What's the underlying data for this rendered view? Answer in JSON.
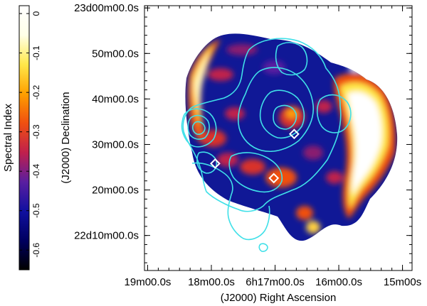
{
  "chart_data": {
    "type": "heatmap",
    "title": "",
    "xlabel": "(J2000) Right Ascension",
    "ylabel": "(J2000) Declination",
    "colorbar": {
      "label": "Spectral Index",
      "range": [
        -0.65,
        0.02
      ],
      "ticks": [
        "0",
        "-0.1",
        "-0.2",
        "-0.3",
        "-0.4",
        "-0.5",
        "-0.6"
      ],
      "tick_values": [
        0,
        -0.1,
        -0.2,
        -0.3,
        -0.4,
        -0.5,
        -0.6
      ],
      "colormap": [
        "#000000",
        "#000060",
        "#1010a0",
        "#5a1ea0",
        "#c0204c",
        "#f05010",
        "#ffa000",
        "#ffe84a",
        "#ffffe8",
        "#ffffff"
      ]
    },
    "x_ticks": [
      {
        "label": "19m00.0s",
        "ra_min": 19.0
      },
      {
        "label": "18m00.0s",
        "ra_min": 18.0
      },
      {
        "label": "6h17m00.0s",
        "ra_min": 17.0
      },
      {
        "label": "16m00.0s",
        "ra_min": 16.0
      },
      {
        "label": "15m00s",
        "ra_min": 15.0
      }
    ],
    "y_ticks": [
      {
        "label": "23d00m00.0s",
        "dec_arcmin": 60
      },
      {
        "label": "50m00.0s",
        "dec_arcmin": 50
      },
      {
        "label": "40m00.0s",
        "dec_arcmin": 40
      },
      {
        "label": "30m00.0s",
        "dec_arcmin": 30
      },
      {
        "label": "20m00.0s",
        "dec_arcmin": 20
      },
      {
        "label": "22d10m00.0s",
        "dec_arcmin": 10
      }
    ],
    "xlim_ra_min": [
      19.05,
      14.85
    ],
    "ylim_dec_arcmin": [
      60.5,
      2.3
    ],
    "contour_color": "#40e0e8",
    "markers": [
      {
        "shape": "diamond",
        "ra_min": 17.94,
        "dec_arcmin": 25.8
      },
      {
        "shape": "diamond",
        "ra_min": 17.02,
        "dec_arcmin": 22.6
      },
      {
        "shape": "diamond",
        "ra_min": 16.7,
        "dec_arcmin": 32.3
      }
    ]
  }
}
